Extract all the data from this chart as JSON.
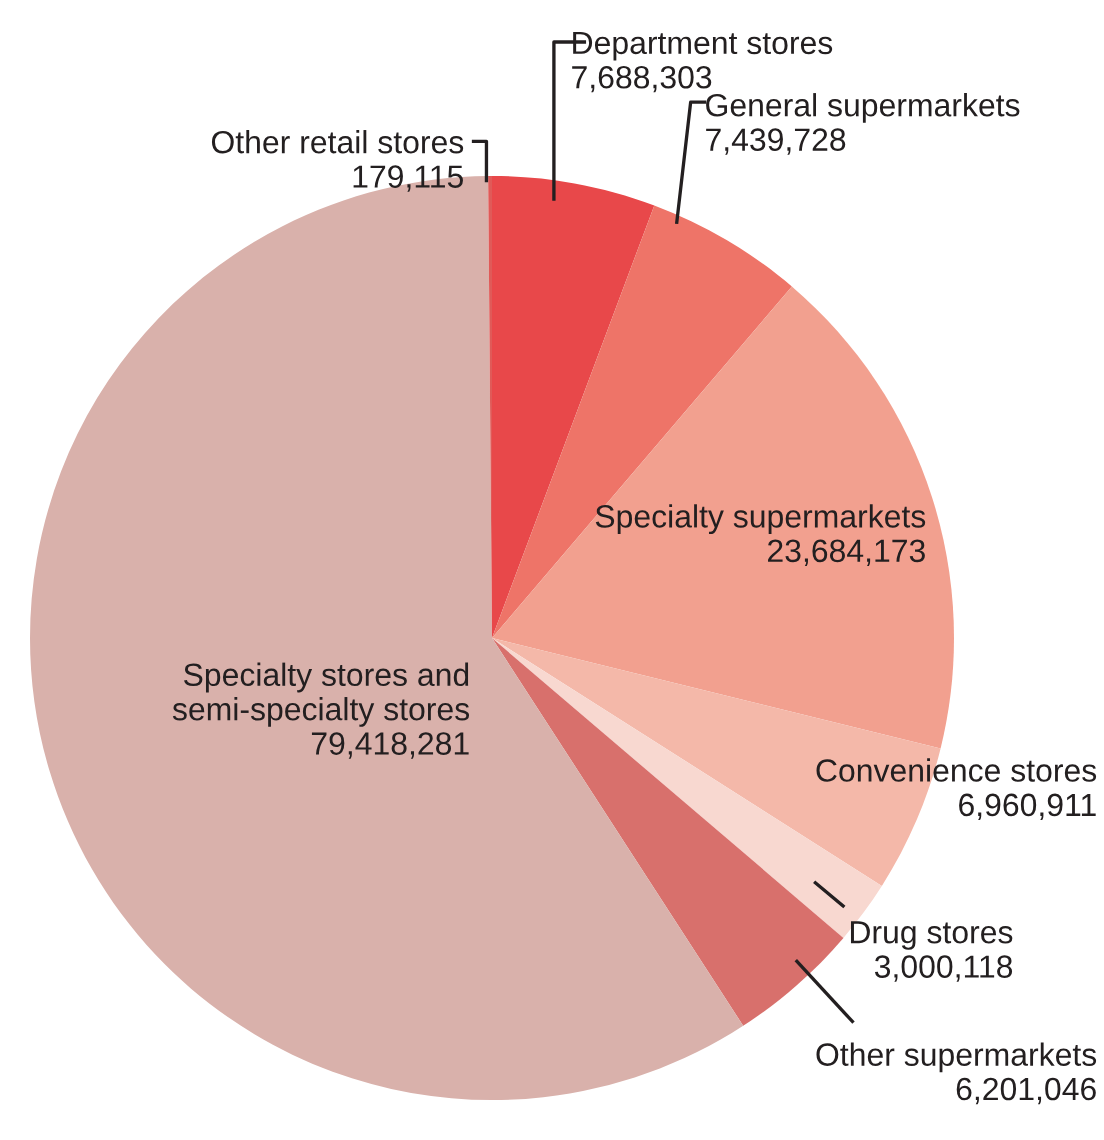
{
  "chart_data": {
    "type": "pie",
    "categories": [
      "Department stores",
      "General supermarkets",
      "Specialty supermarkets",
      "Convenience stores",
      "Drug stores",
      "Other supermarkets",
      "Specialty stores and\nsemi-specialty stores",
      "Other retail stores"
    ],
    "values": [
      7688303,
      7439728,
      23684173,
      6960911,
      3000118,
      6201046,
      79418281,
      179115
    ],
    "colors": [
      "#e8484a",
      "#ee7468",
      "#f2a08f",
      "#f4b8a9",
      "#f8d8d0",
      "#d8706c",
      "#d9b1ab",
      "#e05a58"
    ],
    "value_labels": [
      "7,688,303",
      "7,439,728",
      "23,684,173",
      "6,960,911",
      "3,000,118",
      "6,201,046",
      "79,418,281",
      "179,115"
    ]
  }
}
